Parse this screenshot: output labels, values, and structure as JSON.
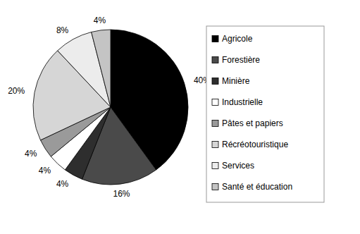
{
  "chart_data": {
    "type": "pie",
    "categories": [
      "Agricole",
      "Forestière",
      "Minière",
      "Industrielle",
      "Pâtes et papiers",
      "Récréotouristique",
      "Services",
      "Santé et éducation"
    ],
    "values": [
      40,
      16,
      4,
      4,
      4,
      20,
      8,
      4
    ],
    "value_labels": [
      "40%",
      "16%",
      "4%",
      "4%",
      "4%",
      "20%",
      "8%",
      "4%"
    ],
    "colors": [
      "#000000",
      "#4a4a4a",
      "#2e2e2e",
      "#ffffff",
      "#9a9a9a",
      "#d6d6d6",
      "#ececec",
      "#c4c4c4"
    ],
    "data_labels": true,
    "legend": "right"
  }
}
